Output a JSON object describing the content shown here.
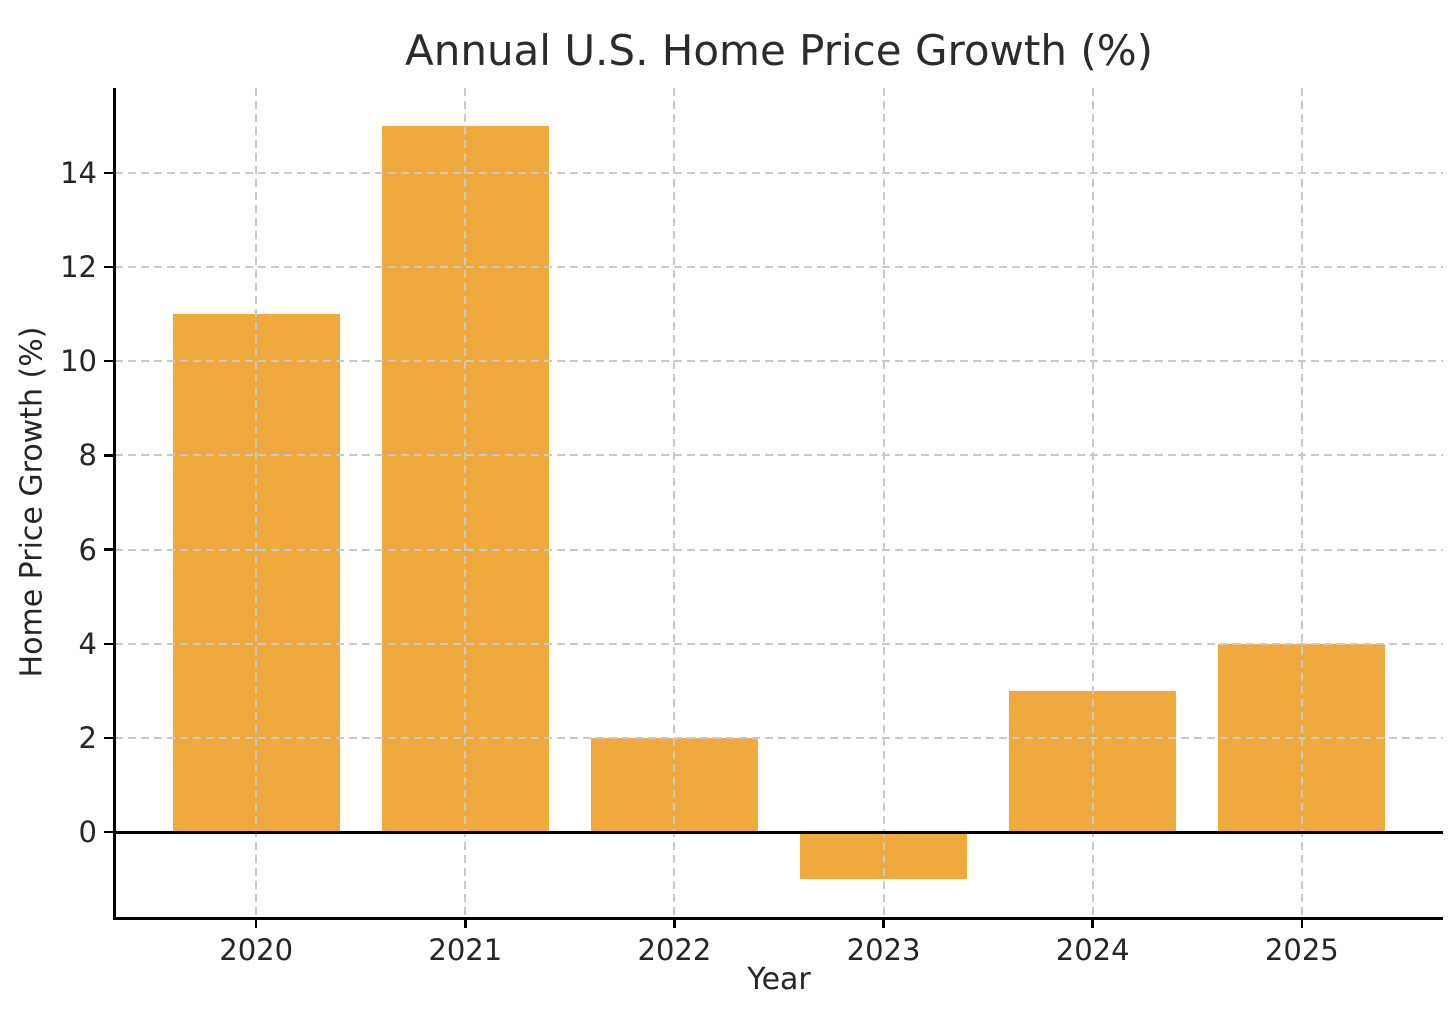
{
  "chart_data": {
    "type": "bar",
    "title": "Annual U.S. Home Price Growth (%)",
    "xlabel": "Year",
    "ylabel": "Home Price Growth (%)",
    "categories": [
      "2020",
      "2021",
      "2022",
      "2023",
      "2024",
      "2025"
    ],
    "values": [
      11,
      15,
      2,
      -1,
      3,
      4
    ],
    "yticks": [
      0,
      2,
      4,
      6,
      8,
      10,
      12,
      14
    ],
    "ylim": [
      -1.8,
      15.8
    ],
    "grid": true,
    "grid_style": "dashed",
    "legend": "none",
    "bar_color": "#F0A93C",
    "grid_color": "#C9C9C9",
    "axis_color": "#000000",
    "text_color": "#262626"
  }
}
